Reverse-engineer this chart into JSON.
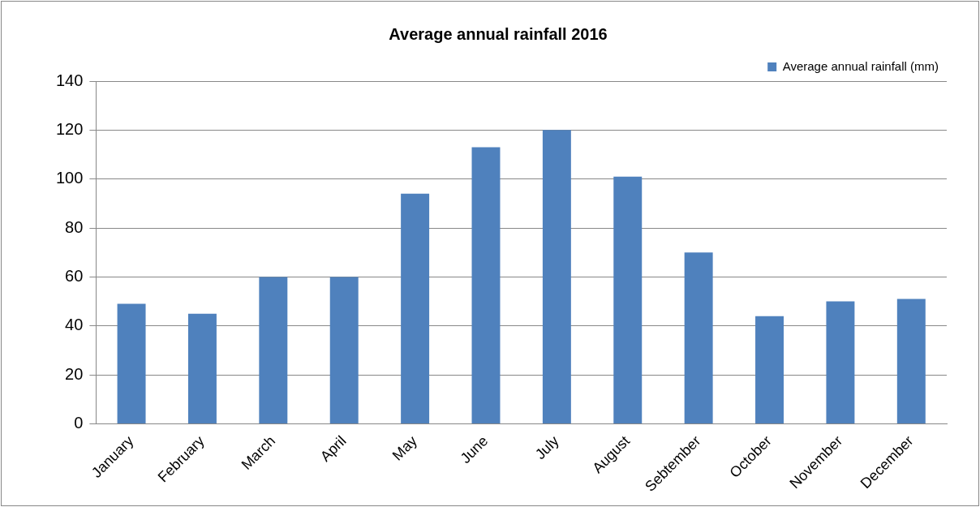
{
  "chart_data": {
    "type": "bar",
    "title": "Average annual rainfall 2016",
    "categories": [
      "January",
      "February",
      "March",
      "April",
      "May",
      "June",
      "July",
      "August",
      "Sebtember",
      "October",
      "November",
      "December"
    ],
    "series": [
      {
        "name": "Average annual rainfall (mm)",
        "color": "#4f81bd",
        "values": [
          49,
          45,
          60,
          60,
          94,
          113,
          120,
          101,
          70,
          44,
          50,
          51
        ]
      }
    ],
    "ylim": [
      0,
      140
    ],
    "yticks": [
      0,
      20,
      40,
      60,
      80,
      100,
      120,
      140
    ],
    "grid": "y",
    "legend": "top right"
  }
}
